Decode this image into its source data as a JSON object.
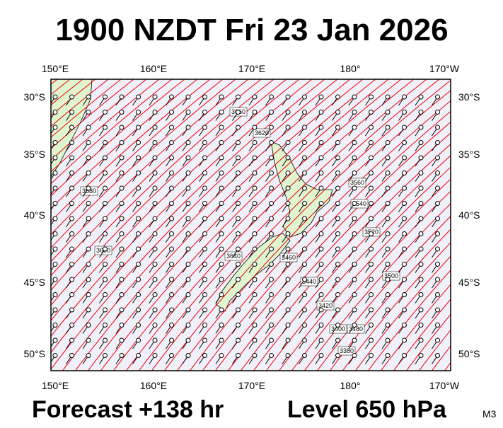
{
  "title": "1900 NZDT Fri 23 Jan 2026",
  "lon_labels": [
    "150°E",
    "160°E",
    "170°E",
    "180°",
    "170°W"
  ],
  "lat_labels": [
    "30°S",
    "35°S",
    "40°S",
    "45°S",
    "50°S"
  ],
  "contour_labels": [
    "3660",
    "3640",
    "3620",
    "3600",
    "3580",
    "3560",
    "3540",
    "3520",
    "3500",
    "3480",
    "3460",
    "3440",
    "3420",
    "3400",
    "3380"
  ],
  "footer": {
    "forecast": "Forecast +138 hr",
    "level": "Level 650 hPa",
    "model": "M3"
  }
}
